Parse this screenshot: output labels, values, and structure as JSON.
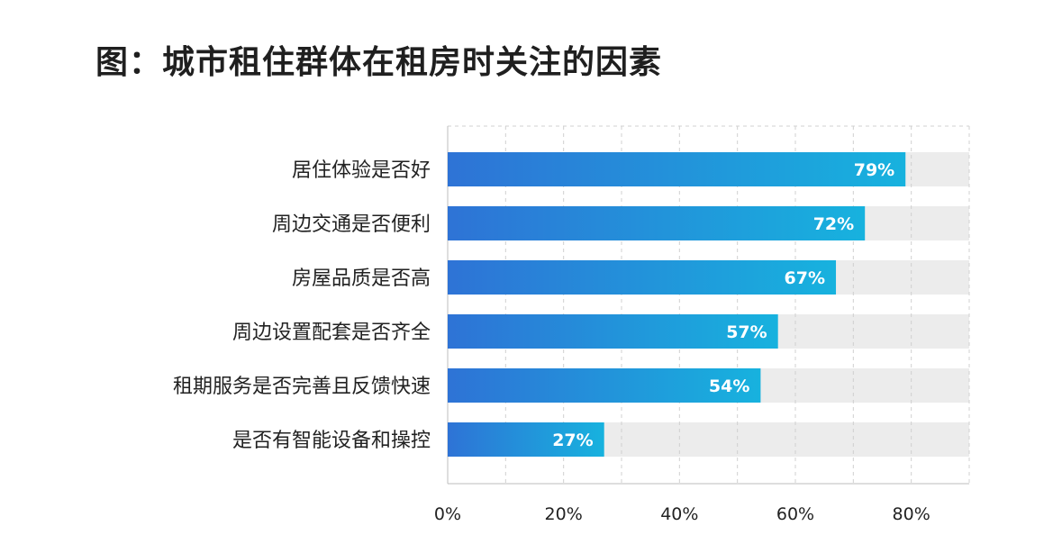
{
  "title": "图：城市租住群体在租房时关注的因素",
  "chart_data": {
    "type": "bar",
    "orientation": "horizontal",
    "title": "图：城市租住群体在租房时关注的因素",
    "categories": [
      "居住体验是否好",
      "周边交通是否便利",
      "房屋品质是否高",
      "周边设置配套是否齐全",
      "租期服务是否完善且反馈快速",
      "是否有智能设备和操控"
    ],
    "values": [
      79,
      72,
      67,
      57,
      54,
      27
    ],
    "value_labels": [
      "79%",
      "72%",
      "67%",
      "57%",
      "54%",
      "27%"
    ],
    "x_ticks": [
      "0%",
      "20%",
      "40%",
      "60%",
      "80%"
    ],
    "xlim": [
      0,
      90
    ],
    "grid": true,
    "colors": {
      "bar_start": "#2e73d6",
      "bar_end": "#17b2de",
      "track": "#ececec",
      "grid": "#d0d0d0"
    }
  }
}
